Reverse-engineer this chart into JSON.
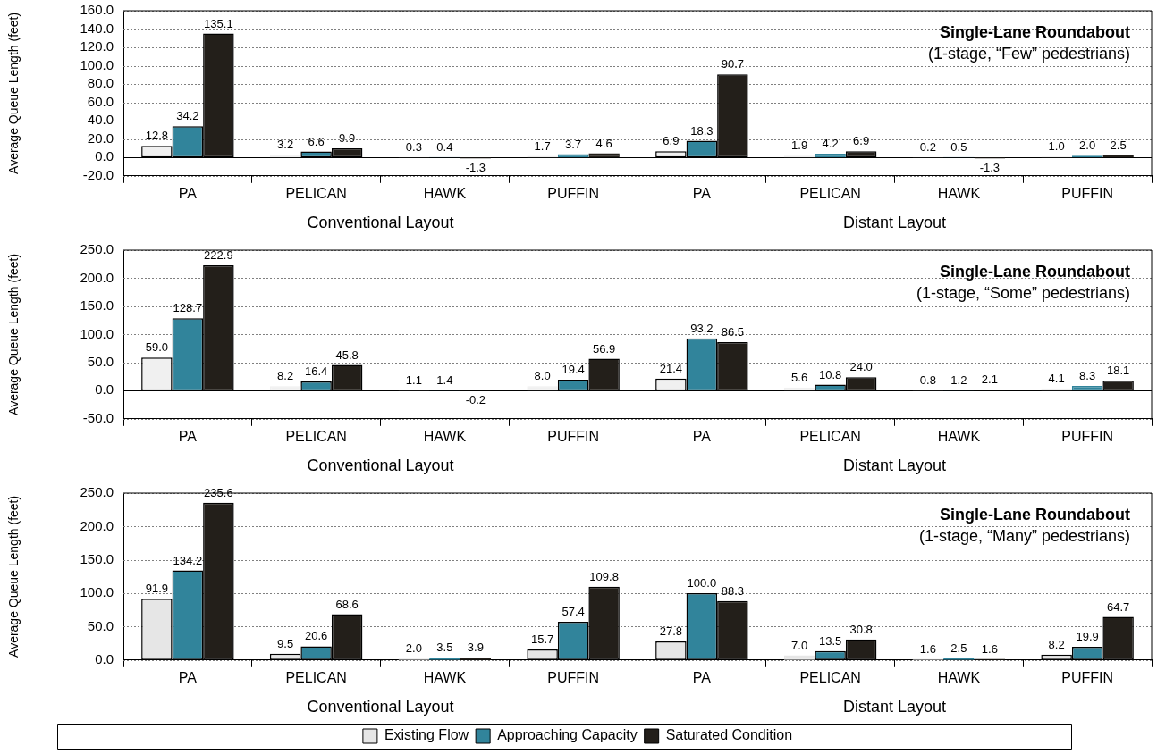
{
  "chart_data": [
    {
      "type": "bar",
      "title": "Single-Lane Roundabout",
      "subtitle": "(1-stage, “Few” pedestrians)",
      "ylabel": "Average Queue Length (feet)",
      "categories": [
        "PA",
        "PELICAN",
        "HAWK",
        "PUFFIN",
        "PA",
        "PELICAN",
        "HAWK",
        "PUFFIN"
      ],
      "annotations": [
        "Conventional Layout",
        "Distant Layout"
      ],
      "series": [
        {
          "color": "#f0f0f0",
          "values": [
            12.8,
            3.2,
            0.3,
            1.7,
            6.9,
            1.9,
            0.2,
            1.0
          ],
          "value_labels": [
            "12.8",
            "3.2",
            "0.3",
            "1.7",
            "6.9",
            "1.9",
            "0.2",
            "1.0"
          ]
        },
        {
          "color": "#31849b",
          "values": [
            34.2,
            6.6,
            0.4,
            3.7,
            18.3,
            4.2,
            0.5,
            2.0
          ],
          "value_labels": [
            "34.2",
            "6.6",
            "0.4",
            "3.7",
            "18.3",
            "4.2",
            "0.5",
            "2.0"
          ]
        },
        {
          "color": "#231f1a",
          "values": [
            135.1,
            9.9,
            -1.3,
            4.6,
            90.7,
            6.9,
            -1.3,
            2.5
          ],
          "value_labels": [
            "135.1",
            "9.9",
            "-1.3",
            "4.6",
            "90.7",
            "6.9",
            "-1.3",
            "2.5"
          ]
        }
      ],
      "ylim": [
        -20,
        160
      ],
      "yticks": [
        {
          "value": -20,
          "label": "-20.0"
        },
        {
          "value": 0,
          "label": "0.0"
        },
        {
          "value": 20,
          "label": "20.0"
        },
        {
          "value": 40,
          "label": "40.0"
        },
        {
          "value": 60,
          "label": "60.0"
        },
        {
          "value": 80,
          "label": "80.0"
        },
        {
          "value": 100,
          "label": "100.0"
        },
        {
          "value": 120,
          "label": "120.0"
        },
        {
          "value": 140,
          "label": "140.0"
        },
        {
          "value": 160,
          "label": "160.0"
        }
      ],
      "grid": "y",
      "legend": false
    },
    {
      "type": "bar",
      "title": "Single-Lane Roundabout",
      "subtitle": "(1-stage, “Some” pedestrians)",
      "ylabel": "Average Queue Length (feet)",
      "categories": [
        "PA",
        "PELICAN",
        "HAWK",
        "PUFFIN",
        "PA",
        "PELICAN",
        "HAWK",
        "PUFFIN"
      ],
      "annotations": [
        "Conventional Layout",
        "Distant Layout"
      ],
      "series": [
        {
          "color": "#f0f0f0",
          "values": [
            59.0,
            8.2,
            1.1,
            8.0,
            21.4,
            5.6,
            0.8,
            4.1
          ],
          "value_labels": [
            "59.0",
            "8.2",
            "1.1",
            "8.0",
            "21.4",
            "5.6",
            "0.8",
            "4.1"
          ]
        },
        {
          "color": "#31849b",
          "values": [
            128.7,
            16.4,
            1.4,
            19.4,
            93.2,
            10.8,
            1.2,
            8.3
          ],
          "value_labels": [
            "128.7",
            "16.4",
            "1.4",
            "19.4",
            "93.2",
            "10.8",
            "1.2",
            "8.3"
          ]
        },
        {
          "color": "#231f1a",
          "values": [
            222.9,
            45.8,
            -0.2,
            56.9,
            86.5,
            24.0,
            2.1,
            18.1
          ],
          "value_labels": [
            "222.9",
            "45.8",
            "-0.2",
            "56.9",
            "86.5",
            "24.0",
            "2.1",
            "18.1"
          ]
        }
      ],
      "ylim": [
        -50,
        250
      ],
      "yticks": [
        {
          "value": -50,
          "label": "-50.0"
        },
        {
          "value": 0,
          "label": "0.0"
        },
        {
          "value": 50,
          "label": "50.0"
        },
        {
          "value": 100,
          "label": "100.0"
        },
        {
          "value": 150,
          "label": "150.0"
        },
        {
          "value": 200,
          "label": "200.0"
        },
        {
          "value": 250,
          "label": "250.0"
        }
      ],
      "grid": "y",
      "legend": false
    },
    {
      "type": "bar",
      "title": "Single-Lane Roundabout",
      "subtitle": "(1-stage, “Many” pedestrians)",
      "ylabel": "Average Queue Length (feet)",
      "categories": [
        "PA",
        "PELICAN",
        "HAWK",
        "PUFFIN",
        "PA",
        "PELICAN",
        "HAWK",
        "PUFFIN"
      ],
      "annotations": [
        "Conventional Layout",
        "Distant Layout"
      ],
      "series": [
        {
          "name": "Existing Flow",
          "color": "#e6e6e6",
          "values": [
            91.9,
            9.5,
            2.0,
            15.7,
            27.8,
            7.0,
            1.6,
            8.2
          ],
          "value_labels": [
            "91.9",
            "9.5",
            "2.0",
            "15.7",
            "27.8",
            "7.0",
            "1.6",
            "8.2"
          ]
        },
        {
          "name": "Approaching Capacity",
          "color": "#31849b",
          "values": [
            134.2,
            20.6,
            3.5,
            57.4,
            100.0,
            13.5,
            2.5,
            19.9
          ],
          "value_labels": [
            "134.2",
            "20.6",
            "3.5",
            "57.4",
            "100.0",
            "13.5",
            "2.5",
            "19.9"
          ]
        },
        {
          "name": "Saturated Condition",
          "color": "#231f1a",
          "values": [
            235.6,
            68.6,
            3.9,
            109.8,
            88.3,
            30.8,
            1.6,
            64.7
          ],
          "value_labels": [
            "235.6",
            "68.6",
            "3.9",
            "109.8",
            "88.3",
            "30.8",
            "1.6",
            "64.7"
          ]
        }
      ],
      "ylim": [
        0,
        250
      ],
      "yticks": [
        {
          "value": 0,
          "label": "0.0"
        },
        {
          "value": 50,
          "label": "50.0"
        },
        {
          "value": 100,
          "label": "100.0"
        },
        {
          "value": 150,
          "label": "150.0"
        },
        {
          "value": 200,
          "label": "200.0"
        },
        {
          "value": 250,
          "label": "250.0"
        }
      ],
      "grid": "y",
      "legend": "bottom"
    }
  ]
}
